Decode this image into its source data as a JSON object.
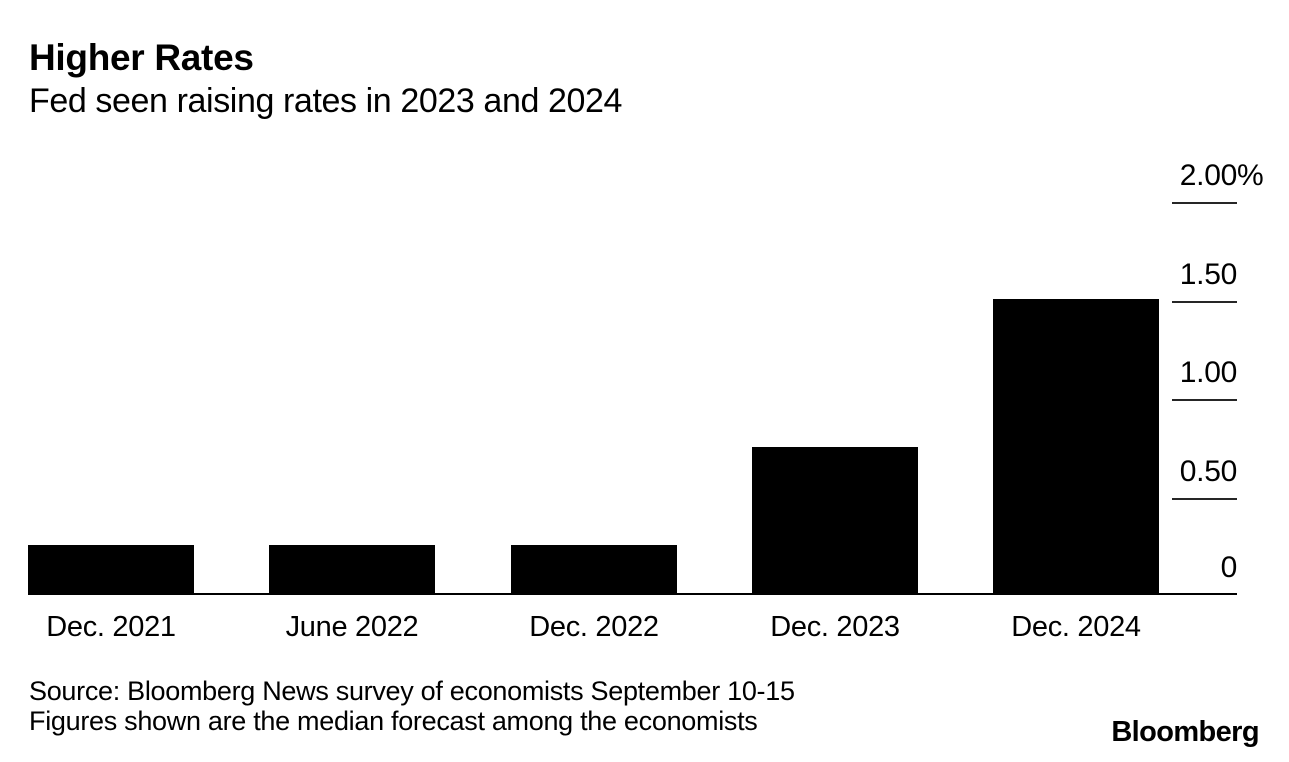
{
  "header": {
    "title": "Higher Rates",
    "subtitle": "Fed seen raising rates in 2023 and 2024"
  },
  "chart_data": {
    "type": "bar",
    "title": "Higher Rates",
    "subtitle": "Fed seen raising rates in 2023 and 2024",
    "categories": [
      "Dec. 2021",
      "June 2022",
      "Dec. 2022",
      "Dec. 2023",
      "Dec. 2024"
    ],
    "values": [
      0.25,
      0.25,
      0.25,
      0.75,
      1.5
    ],
    "unit": "%",
    "xlabel": "",
    "ylabel": "",
    "ylim": [
      0,
      2.0
    ],
    "value_axis_side": "right",
    "grid": false,
    "legend": "none",
    "yticks": [
      {
        "value": 2.0,
        "label": "2.00",
        "suffix": "%"
      },
      {
        "value": 1.5,
        "label": "1.50",
        "suffix": ""
      },
      {
        "value": 1.0,
        "label": "1.00",
        "suffix": ""
      },
      {
        "value": 0.5,
        "label": "0.50",
        "suffix": ""
      },
      {
        "value": 0,
        "label": "0",
        "suffix": ""
      }
    ],
    "bar_color": "#000000",
    "axis_color": "#000000",
    "tick_color": "#262626",
    "background_color": "#ffffff",
    "text_color": "#000000"
  },
  "footer": {
    "source_line1": "Source: Bloomberg News survey of economists September 10-15",
    "source_line2": "Figures shown are the median forecast among the economists",
    "logo": "Bloomberg"
  }
}
